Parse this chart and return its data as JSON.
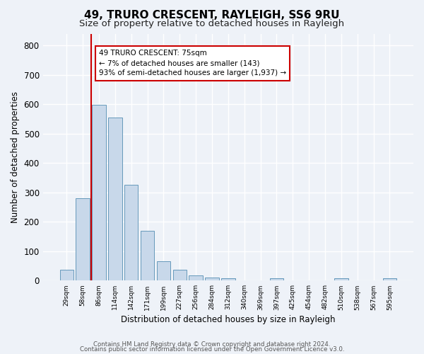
{
  "title1": "49, TRURO CRESCENT, RAYLEIGH, SS6 9RU",
  "title2": "Size of property relative to detached houses in Rayleigh",
  "xlabel": "Distribution of detached houses by size in Rayleigh",
  "ylabel": "Number of detached properties",
  "bar_labels": [
    "29sqm",
    "58sqm",
    "86sqm",
    "114sqm",
    "142sqm",
    "171sqm",
    "199sqm",
    "227sqm",
    "256sqm",
    "284sqm",
    "312sqm",
    "340sqm",
    "369sqm",
    "397sqm",
    "425sqm",
    "454sqm",
    "482sqm",
    "510sqm",
    "538sqm",
    "567sqm",
    "595sqm"
  ],
  "bar_values": [
    37,
    280,
    597,
    554,
    325,
    170,
    65,
    38,
    17,
    11,
    9,
    0,
    0,
    8,
    0,
    0,
    0,
    8,
    0,
    0,
    9
  ],
  "bar_color": "#c8d8ea",
  "bar_edge_color": "#6699bb",
  "vline_x": 1.5,
  "vline_color": "#cc0000",
  "annotation_text": "49 TRURO CRESCENT: 75sqm\n← 7% of detached houses are smaller (143)\n93% of semi-detached houses are larger (1,937) →",
  "annotation_box_color": "#ffffff",
  "annotation_box_edge": "#cc0000",
  "ylim": [
    0,
    840
  ],
  "yticks": [
    0,
    100,
    200,
    300,
    400,
    500,
    600,
    700,
    800
  ],
  "footer1": "Contains HM Land Registry data © Crown copyright and database right 2024.",
  "footer2": "Contains public sector information licensed under the Open Government Licence v3.0.",
  "bg_color": "#eef2f8",
  "plot_bg_color": "#eef2f8",
  "grid_color": "#ffffff",
  "title1_fontsize": 11,
  "title2_fontsize": 9.5
}
